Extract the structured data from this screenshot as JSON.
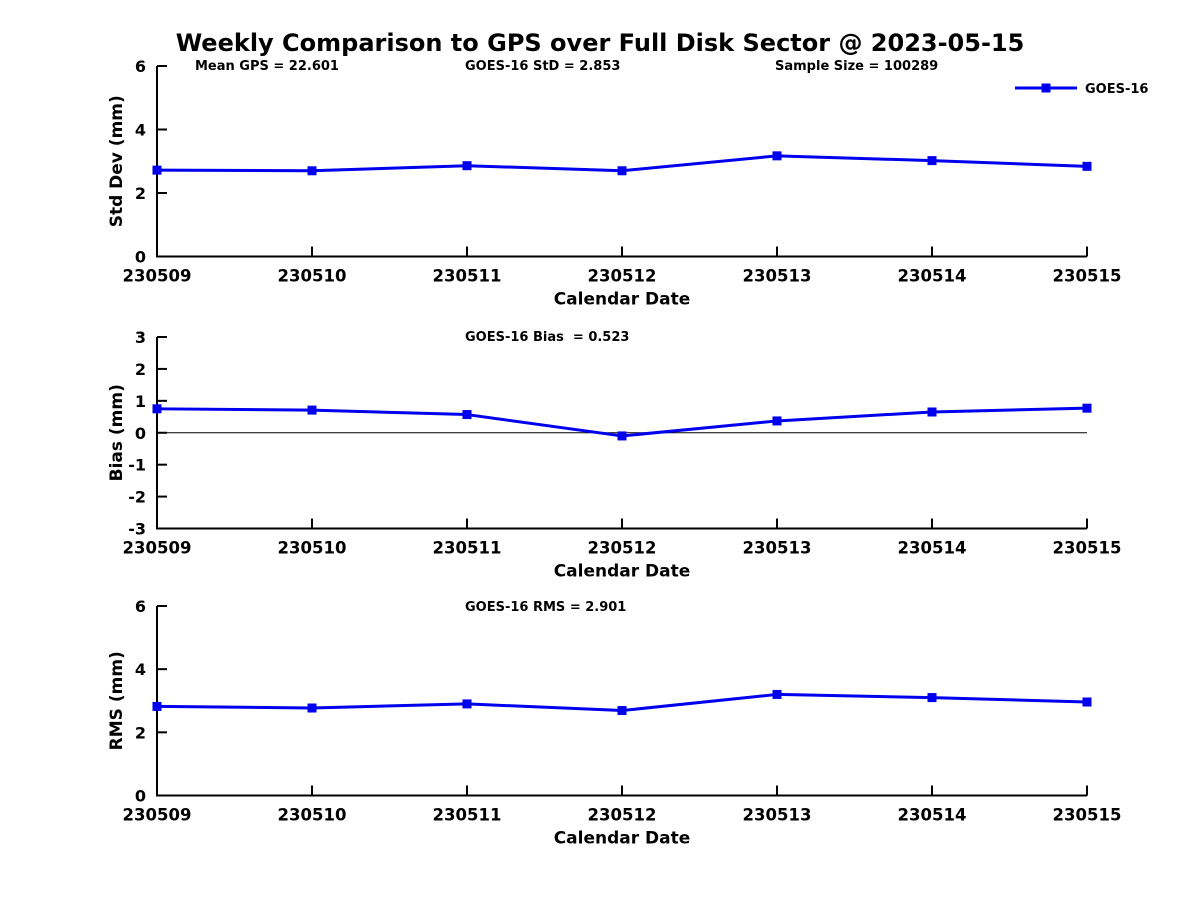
{
  "figure": {
    "title": "Weekly Comparison to GPS over Full Disk Sector @ 2023-05-15"
  },
  "chart_data": [
    {
      "type": "line",
      "name": "std-dev-panel",
      "categories": [
        "230509",
        "230510",
        "230511",
        "230512",
        "230513",
        "230514",
        "230515"
      ],
      "series": [
        {
          "name": "GOES-16",
          "values": [
            2.72,
            2.7,
            2.86,
            2.7,
            3.17,
            3.02,
            2.84
          ]
        }
      ],
      "xlabel": "Calendar Date",
      "ylabel": "Std Dev (mm)",
      "ylim": [
        0,
        6
      ],
      "yticks": [
        0,
        2,
        4,
        6
      ],
      "annotations": [
        "Mean GPS = 22.601",
        "GOES-16 StD = 2.853",
        "Sample Size = 100289"
      ],
      "legend": {
        "label": "GOES-16",
        "position": "top-right"
      },
      "zero_line": false,
      "grid": false
    },
    {
      "type": "line",
      "name": "bias-panel",
      "categories": [
        "230509",
        "230510",
        "230511",
        "230512",
        "230513",
        "230514",
        "230515"
      ],
      "series": [
        {
          "name": "GOES-16",
          "values": [
            0.75,
            0.71,
            0.57,
            -0.1,
            0.37,
            0.65,
            0.77
          ]
        }
      ],
      "xlabel": "Calendar Date",
      "ylabel": "Bias (mm)",
      "ylim": [
        -3,
        3
      ],
      "yticks": [
        -3,
        -2,
        -1,
        0,
        1,
        2,
        3
      ],
      "annotations": [
        "GOES-16 Bias  = 0.523"
      ],
      "zero_line": true,
      "grid": false
    },
    {
      "type": "line",
      "name": "rms-panel",
      "categories": [
        "230509",
        "230510",
        "230511",
        "230512",
        "230513",
        "230514",
        "230515"
      ],
      "series": [
        {
          "name": "GOES-16",
          "values": [
            2.82,
            2.77,
            2.9,
            2.69,
            3.2,
            3.1,
            2.96
          ]
        }
      ],
      "xlabel": "Calendar Date",
      "ylabel": "RMS (mm)",
      "ylim": [
        0,
        6
      ],
      "yticks": [
        0,
        2,
        4,
        6
      ],
      "annotations": [
        "GOES-16 RMS = 2.901"
      ],
      "zero_line": false,
      "grid": false
    }
  ],
  "style": {
    "series_color": "#0000ee",
    "axis_color": "#000000",
    "text_color": "#000000",
    "background": "#ffffff"
  }
}
